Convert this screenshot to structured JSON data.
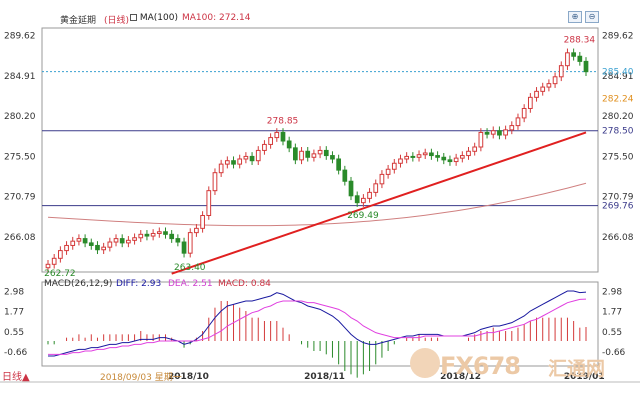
{
  "header": {
    "instrument": "黄金延期",
    "period": "(日线)",
    "ma_label": "MA(100)",
    "ma_value": "MA100: 272.14"
  },
  "macd_header": {
    "title": "MACD(26,12,9)",
    "diff": "DIFF: 2.93",
    "dea": "DEA: 2.51",
    "macd": "MACD: 0.84"
  },
  "footer": {
    "period_button": "日线▲",
    "cursor_date": "2018/09/03 星期一"
  },
  "watermark": {
    "text": "FX678",
    "cn": "汇通网"
  },
  "toolbar": {
    "zoom_in_icon": "zoom-in",
    "zoom_out_icon": "zoom-out",
    "zoom_in_label": "⊕",
    "zoom_out_label": "⊖"
  },
  "colors": {
    "up": "#d43a3a",
    "down": "#2a8a2a",
    "ma": "#d08080",
    "trend": "#e02020",
    "hline": "#3a3a8a",
    "diff": "#1a1aa0",
    "dea": "#e040e0"
  },
  "chart_data": {
    "type": "candlestick",
    "y_axis_labels": [
      "289.62",
      "284.91",
      "280.20",
      "275.50",
      "270.79",
      "266.08"
    ],
    "y_axis_right_extra": [
      "285.40",
      "282.24",
      "278.50",
      "269.76"
    ],
    "ylim": [
      262.0,
      290.5
    ],
    "x_labels": [
      "2018/10",
      "2018/11",
      "2018/12",
      "2019/01"
    ],
    "annotations": [
      {
        "text": "288.34",
        "value": 288.34,
        "kind": "high"
      },
      {
        "text": "278.85",
        "value": 278.85,
        "kind": "high"
      },
      {
        "text": "269.49",
        "value": 269.49,
        "kind": "low"
      },
      {
        "text": "263.40",
        "value": 263.4,
        "kind": "low"
      },
      {
        "text": "262.72",
        "value": 262.72,
        "kind": "low"
      }
    ],
    "horizontal_lines": [
      278.5,
      269.76
    ],
    "dashed_line": 285.4,
    "current_price": 285.4,
    "ma_level": 272.14,
    "macd_axis_labels": [
      "2.98",
      "1.77",
      "0.55",
      "-0.66"
    ],
    "macd_ylim": [
      -1.5,
      3.3
    ],
    "closes": [
      262.9,
      263.6,
      264.5,
      265.1,
      265.6,
      265.9,
      265.4,
      265.1,
      264.6,
      264.9,
      265.5,
      265.9,
      265.4,
      265.7,
      266.0,
      266.4,
      266.2,
      266.5,
      266.7,
      266.4,
      265.9,
      265.5,
      264.2,
      266.6,
      267.1,
      268.6,
      271.5,
      273.6,
      274.6,
      275.0,
      274.6,
      275.2,
      275.5,
      275.0,
      276.2,
      276.9,
      277.7,
      278.3,
      277.3,
      276.5,
      275.1,
      276.1,
      275.4,
      275.8,
      276.2,
      275.6,
      275.2,
      273.9,
      272.6,
      270.9,
      270.1,
      270.6,
      271.3,
      272.3,
      273.4,
      274.0,
      274.7,
      275.2,
      275.5,
      275.4,
      275.7,
      275.9,
      275.6,
      275.4,
      275.1,
      274.9,
      275.3,
      275.6,
      276.1,
      276.6,
      278.3,
      278.1,
      278.5,
      278.0,
      278.6,
      279.1,
      280.0,
      281.1,
      282.4,
      283.1,
      283.6,
      284.0,
      284.8,
      286.1,
      287.6,
      287.2,
      286.6,
      285.4
    ],
    "macd_diff": [
      -0.9,
      -0.9,
      -0.8,
      -0.7,
      -0.6,
      -0.5,
      -0.5,
      -0.4,
      -0.4,
      -0.3,
      -0.2,
      -0.2,
      -0.1,
      -0.1,
      0.0,
      0.1,
      0.1,
      0.1,
      0.2,
      0.2,
      0.1,
      0.0,
      -0.2,
      -0.1,
      0.1,
      0.4,
      0.9,
      1.4,
      1.8,
      2.1,
      2.2,
      2.3,
      2.4,
      2.4,
      2.5,
      2.6,
      2.7,
      2.9,
      2.8,
      2.6,
      2.4,
      2.3,
      2.1,
      2.0,
      1.9,
      1.7,
      1.5,
      1.2,
      0.8,
      0.4,
      0.1,
      -0.1,
      -0.2,
      -0.2,
      -0.1,
      0.0,
      0.1,
      0.2,
      0.3,
      0.3,
      0.4,
      0.4,
      0.4,
      0.4,
      0.3,
      0.3,
      0.3,
      0.3,
      0.4,
      0.5,
      0.7,
      0.8,
      0.9,
      0.9,
      1.0,
      1.1,
      1.3,
      1.5,
      1.8,
      2.0,
      2.2,
      2.4,
      2.6,
      2.8,
      3.0,
      3.0,
      2.9,
      2.93
    ],
    "macd_dea": [
      -0.8,
      -0.8,
      -0.8,
      -0.8,
      -0.7,
      -0.7,
      -0.6,
      -0.6,
      -0.5,
      -0.5,
      -0.4,
      -0.4,
      -0.3,
      -0.3,
      -0.2,
      -0.2,
      -0.1,
      -0.1,
      0.0,
      0.0,
      0.0,
      0.0,
      0.0,
      0.0,
      0.0,
      0.1,
      0.2,
      0.4,
      0.6,
      0.9,
      1.1,
      1.3,
      1.5,
      1.7,
      1.8,
      2.0,
      2.1,
      2.3,
      2.4,
      2.4,
      2.4,
      2.4,
      2.3,
      2.3,
      2.2,
      2.1,
      2.0,
      1.9,
      1.7,
      1.4,
      1.2,
      0.9,
      0.7,
      0.5,
      0.4,
      0.3,
      0.2,
      0.2,
      0.2,
      0.2,
      0.2,
      0.3,
      0.3,
      0.3,
      0.3,
      0.3,
      0.3,
      0.3,
      0.3,
      0.3,
      0.4,
      0.5,
      0.5,
      0.6,
      0.7,
      0.8,
      0.9,
      1.0,
      1.2,
      1.3,
      1.5,
      1.7,
      1.9,
      2.1,
      2.3,
      2.4,
      2.5,
      2.51
    ]
  }
}
